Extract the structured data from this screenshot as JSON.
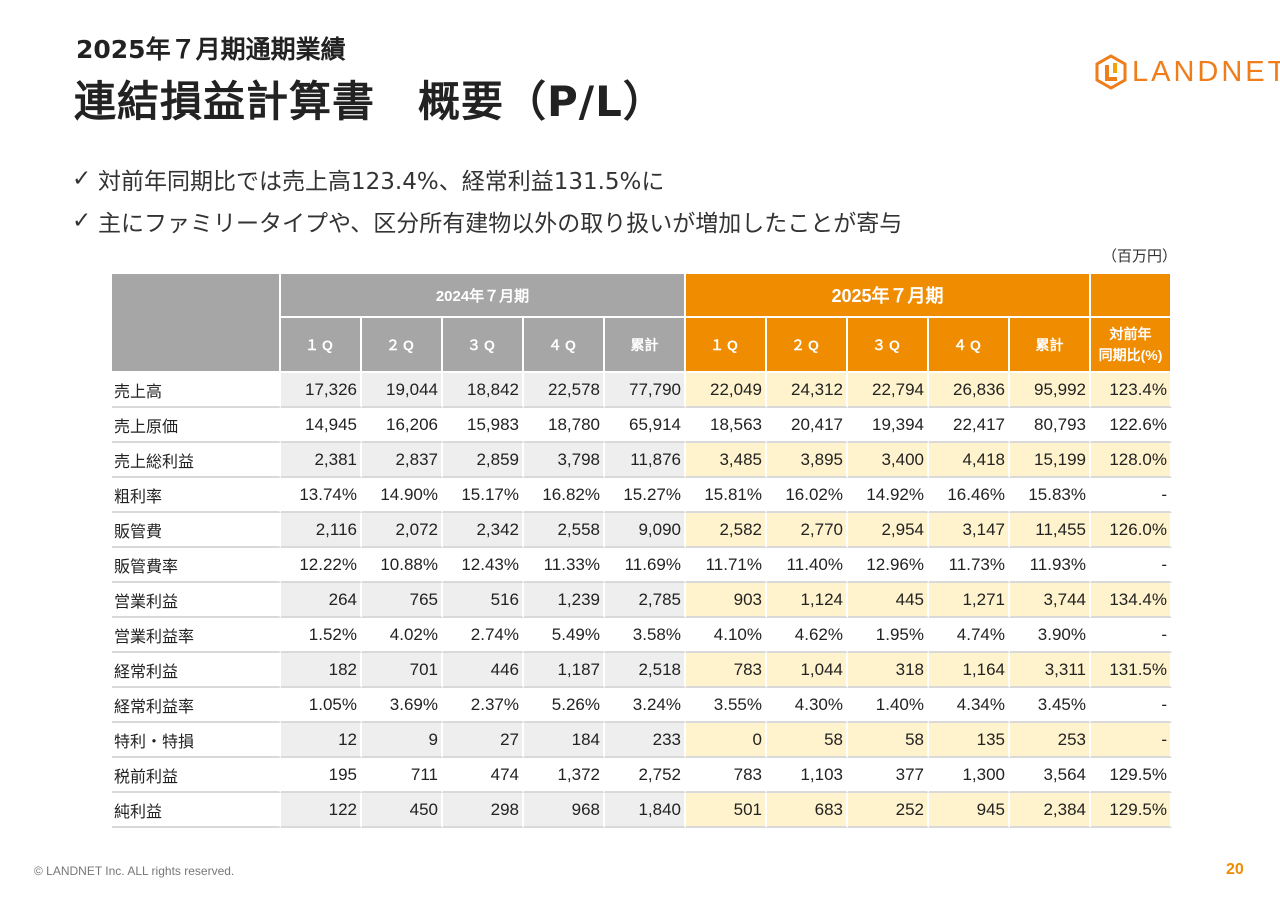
{
  "header": {
    "subtitle": "2025年７月期通期業績",
    "title": "連結損益計算書　概要（P/L）"
  },
  "logo": {
    "text": "LANDNET",
    "icon": "landnet-logo-icon",
    "color": "#ee7d1a"
  },
  "bullets": [
    {
      "icon": "check-icon",
      "text": "対前年同期比では売上高123.4%、経常利益131.5%に"
    },
    {
      "icon": "check-icon",
      "text": "主にファミリータイプや、区分所有建物以外の取り扱いが増加したことが寄与"
    }
  ],
  "unit_label": "（百万円）",
  "table": {
    "period_2024": "2024年７月期",
    "period_2025": "2025年７月期",
    "quarters": [
      "１Q",
      "２Q",
      "３Q",
      "４Q"
    ],
    "cumulative": "累計",
    "yoy_line1": "対前年",
    "yoy_line2": "同期比(%)",
    "colors": {
      "header_2024": "#a6a6a6",
      "header_2025": "#ef8c00",
      "shade_2024": "#eeeeee",
      "shade_2025": "#fff3cd"
    },
    "rows": [
      {
        "label": "売上高",
        "shaded": true,
        "values": [
          "17,326",
          "19,044",
          "18,842",
          "22,578",
          "77,790",
          "22,049",
          "24,312",
          "22,794",
          "26,836",
          "95,992",
          "123.4%"
        ]
      },
      {
        "label": "売上原価",
        "shaded": false,
        "values": [
          "14,945",
          "16,206",
          "15,983",
          "18,780",
          "65,914",
          "18,563",
          "20,417",
          "19,394",
          "22,417",
          "80,793",
          "122.6%"
        ]
      },
      {
        "label": "売上総利益",
        "shaded": true,
        "values": [
          "2,381",
          "2,837",
          "2,859",
          "3,798",
          "11,876",
          "3,485",
          "3,895",
          "3,400",
          "4,418",
          "15,199",
          "128.0%"
        ]
      },
      {
        "label": "粗利率",
        "shaded": false,
        "values": [
          "13.74%",
          "14.90%",
          "15.17%",
          "16.82%",
          "15.27%",
          "15.81%",
          "16.02%",
          "14.92%",
          "16.46%",
          "15.83%",
          "-"
        ]
      },
      {
        "label": "販管費",
        "shaded": true,
        "values": [
          "2,116",
          "2,072",
          "2,342",
          "2,558",
          "9,090",
          "2,582",
          "2,770",
          "2,954",
          "3,147",
          "11,455",
          "126.0%"
        ]
      },
      {
        "label": "販管費率",
        "shaded": false,
        "values": [
          "12.22%",
          "10.88%",
          "12.43%",
          "11.33%",
          "11.69%",
          "11.71%",
          "11.40%",
          "12.96%",
          "11.73%",
          "11.93%",
          "-"
        ]
      },
      {
        "label": "営業利益",
        "shaded": true,
        "values": [
          "264",
          "765",
          "516",
          "1,239",
          "2,785",
          "903",
          "1,124",
          "445",
          "1,271",
          "3,744",
          "134.4%"
        ]
      },
      {
        "label": "営業利益率",
        "shaded": false,
        "values": [
          "1.52%",
          "4.02%",
          "2.74%",
          "5.49%",
          "3.58%",
          "4.10%",
          "4.62%",
          "1.95%",
          "4.74%",
          "3.90%",
          "-"
        ]
      },
      {
        "label": "経常利益",
        "shaded": true,
        "values": [
          "182",
          "701",
          "446",
          "1,187",
          "2,518",
          "783",
          "1,044",
          "318",
          "1,164",
          "3,311",
          "131.5%"
        ]
      },
      {
        "label": "経常利益率",
        "shaded": false,
        "values": [
          "1.05%",
          "3.69%",
          "2.37%",
          "5.26%",
          "3.24%",
          "3.55%",
          "4.30%",
          "1.40%",
          "4.34%",
          "3.45%",
          "-"
        ]
      },
      {
        "label": "特利・特損",
        "shaded": true,
        "values": [
          "12",
          "9",
          "27",
          "184",
          "233",
          "0",
          "58",
          "58",
          "135",
          "253",
          "-"
        ]
      },
      {
        "label": "税前利益",
        "shaded": false,
        "values": [
          "195",
          "711",
          "474",
          "1,372",
          "2,752",
          "783",
          "1,103",
          "377",
          "1,300",
          "3,564",
          "129.5%"
        ]
      },
      {
        "label": "純利益",
        "shaded": true,
        "values": [
          "122",
          "450",
          "298",
          "968",
          "1,840",
          "501",
          "683",
          "252",
          "945",
          "2,384",
          "129.5%"
        ]
      }
    ]
  },
  "footer": {
    "copyright": "© LANDNET Inc. ALL rights reserved.",
    "page_number": "20"
  }
}
